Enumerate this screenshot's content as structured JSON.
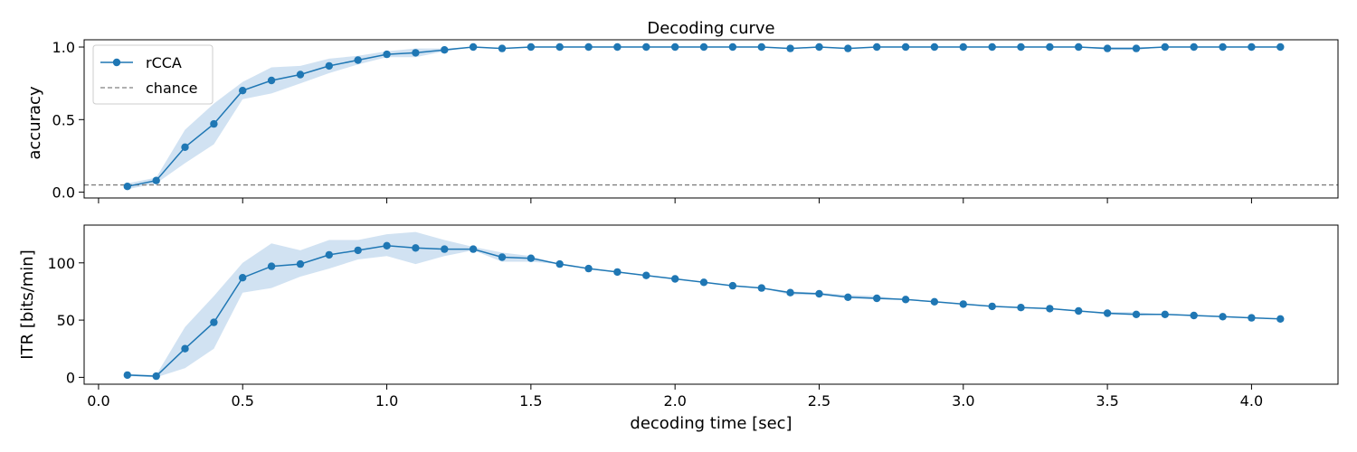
{
  "colors": {
    "series": "#1f77b4",
    "band": "#c6dbef",
    "chance": "#808080"
  },
  "chart_data": [
    {
      "type": "line",
      "title": "Decoding curve",
      "xlabel": "",
      "ylabel": "accuracy",
      "xlim": [
        -0.05,
        4.3
      ],
      "ylim": [
        -0.04,
        1.05
      ],
      "xticks": [
        0.0,
        0.5,
        1.0,
        1.5,
        2.0,
        2.5,
        3.0,
        3.5,
        4.0
      ],
      "yticks": [
        "0.0",
        "0.5",
        "1.0"
      ],
      "legend_position": "top-left",
      "x": [
        0.1,
        0.2,
        0.3,
        0.4,
        0.5,
        0.6,
        0.7,
        0.8,
        0.9,
        1.0,
        1.1,
        1.2,
        1.3,
        1.4,
        1.5,
        1.6,
        1.7,
        1.8,
        1.9,
        2.0,
        2.1,
        2.2,
        2.3,
        2.4,
        2.5,
        2.6,
        2.7,
        2.8,
        2.9,
        3.0,
        3.1,
        3.2,
        3.3,
        3.4,
        3.5,
        3.6,
        3.7,
        3.8,
        3.9,
        4.0,
        4.1
      ],
      "series": [
        {
          "name": "rCCA",
          "values": [
            0.04,
            0.08,
            0.31,
            0.47,
            0.7,
            0.77,
            0.81,
            0.87,
            0.91,
            0.95,
            0.96,
            0.98,
            1.0,
            0.99,
            1.0,
            1.0,
            1.0,
            1.0,
            1.0,
            1.0,
            1.0,
            1.0,
            1.0,
            0.99,
            1.0,
            0.99,
            1.0,
            1.0,
            1.0,
            1.0,
            1.0,
            1.0,
            1.0,
            1.0,
            0.99,
            0.99,
            1.0,
            1.0,
            1.0,
            1.0,
            1.0
          ],
          "lower": [
            0.02,
            0.06,
            0.2,
            0.33,
            0.64,
            0.68,
            0.75,
            0.82,
            0.88,
            0.93,
            0.93,
            0.97,
            1.0,
            0.99,
            1.0,
            1.0,
            1.0,
            1.0,
            1.0,
            1.0,
            1.0,
            1.0,
            1.0,
            0.985,
            1.0,
            0.985,
            1.0,
            1.0,
            1.0,
            1.0,
            1.0,
            1.0,
            1.0,
            1.0,
            0.98,
            0.98,
            1.0,
            1.0,
            1.0,
            1.0,
            1.0
          ],
          "upper": [
            0.06,
            0.1,
            0.43,
            0.61,
            0.76,
            0.86,
            0.87,
            0.92,
            0.94,
            0.97,
            0.99,
            0.99,
            1.0,
            0.995,
            1.0,
            1.0,
            1.0,
            1.0,
            1.0,
            1.0,
            1.0,
            1.0,
            1.0,
            0.995,
            1.0,
            0.995,
            1.0,
            1.0,
            1.0,
            1.0,
            1.0,
            1.0,
            1.0,
            1.0,
            1.0,
            1.0,
            1.0,
            1.0,
            1.0,
            1.0,
            1.0
          ]
        },
        {
          "name": "chance",
          "y": 0.05,
          "style": "dashed"
        }
      ]
    },
    {
      "type": "line",
      "title": "",
      "xlabel": "decoding time [sec]",
      "ylabel": "ITR [bits/min]",
      "xlim": [
        -0.05,
        4.3
      ],
      "ylim": [
        -6,
        133
      ],
      "xticks": [
        "0.0",
        "0.5",
        "1.0",
        "1.5",
        "2.0",
        "2.5",
        "3.0",
        "3.5",
        "4.0"
      ],
      "yticks": [
        "0",
        "50",
        "100"
      ],
      "x": [
        0.1,
        0.2,
        0.3,
        0.4,
        0.5,
        0.6,
        0.7,
        0.8,
        0.9,
        1.0,
        1.1,
        1.2,
        1.3,
        1.4,
        1.5,
        1.6,
        1.7,
        1.8,
        1.9,
        2.0,
        2.1,
        2.2,
        2.3,
        2.4,
        2.5,
        2.6,
        2.7,
        2.8,
        2.9,
        3.0,
        3.1,
        3.2,
        3.3,
        3.4,
        3.5,
        3.6,
        3.7,
        3.8,
        3.9,
        4.0,
        4.1
      ],
      "series": [
        {
          "name": "rCCA",
          "values": [
            2,
            1,
            25,
            48,
            87,
            97,
            99,
            107,
            111,
            115,
            113,
            112,
            112,
            105,
            104,
            99,
            95,
            92,
            89,
            86,
            83,
            80,
            78,
            74,
            73,
            70,
            69,
            68,
            66,
            64,
            62,
            61,
            60,
            58,
            56,
            55,
            55,
            54,
            53,
            52,
            51
          ],
          "lower": [
            1,
            0,
            8,
            25,
            74,
            78,
            88,
            95,
            103,
            106,
            99,
            106,
            111,
            101,
            101,
            99,
            95,
            92,
            89,
            86,
            83,
            80,
            78,
            72,
            72,
            69,
            68,
            68,
            66,
            64,
            62,
            61,
            60,
            58,
            55,
            54,
            55,
            54,
            53,
            52,
            51
          ],
          "upper": [
            3,
            2,
            44,
            71,
            100,
            117,
            111,
            120,
            120,
            125,
            127,
            120,
            114,
            109,
            106,
            99,
            95,
            92,
            89,
            86,
            83,
            80,
            78,
            75,
            74,
            72,
            71,
            68,
            66,
            64,
            62,
            61,
            60,
            58,
            57,
            57,
            55,
            54,
            53,
            52,
            51
          ]
        }
      ]
    }
  ]
}
